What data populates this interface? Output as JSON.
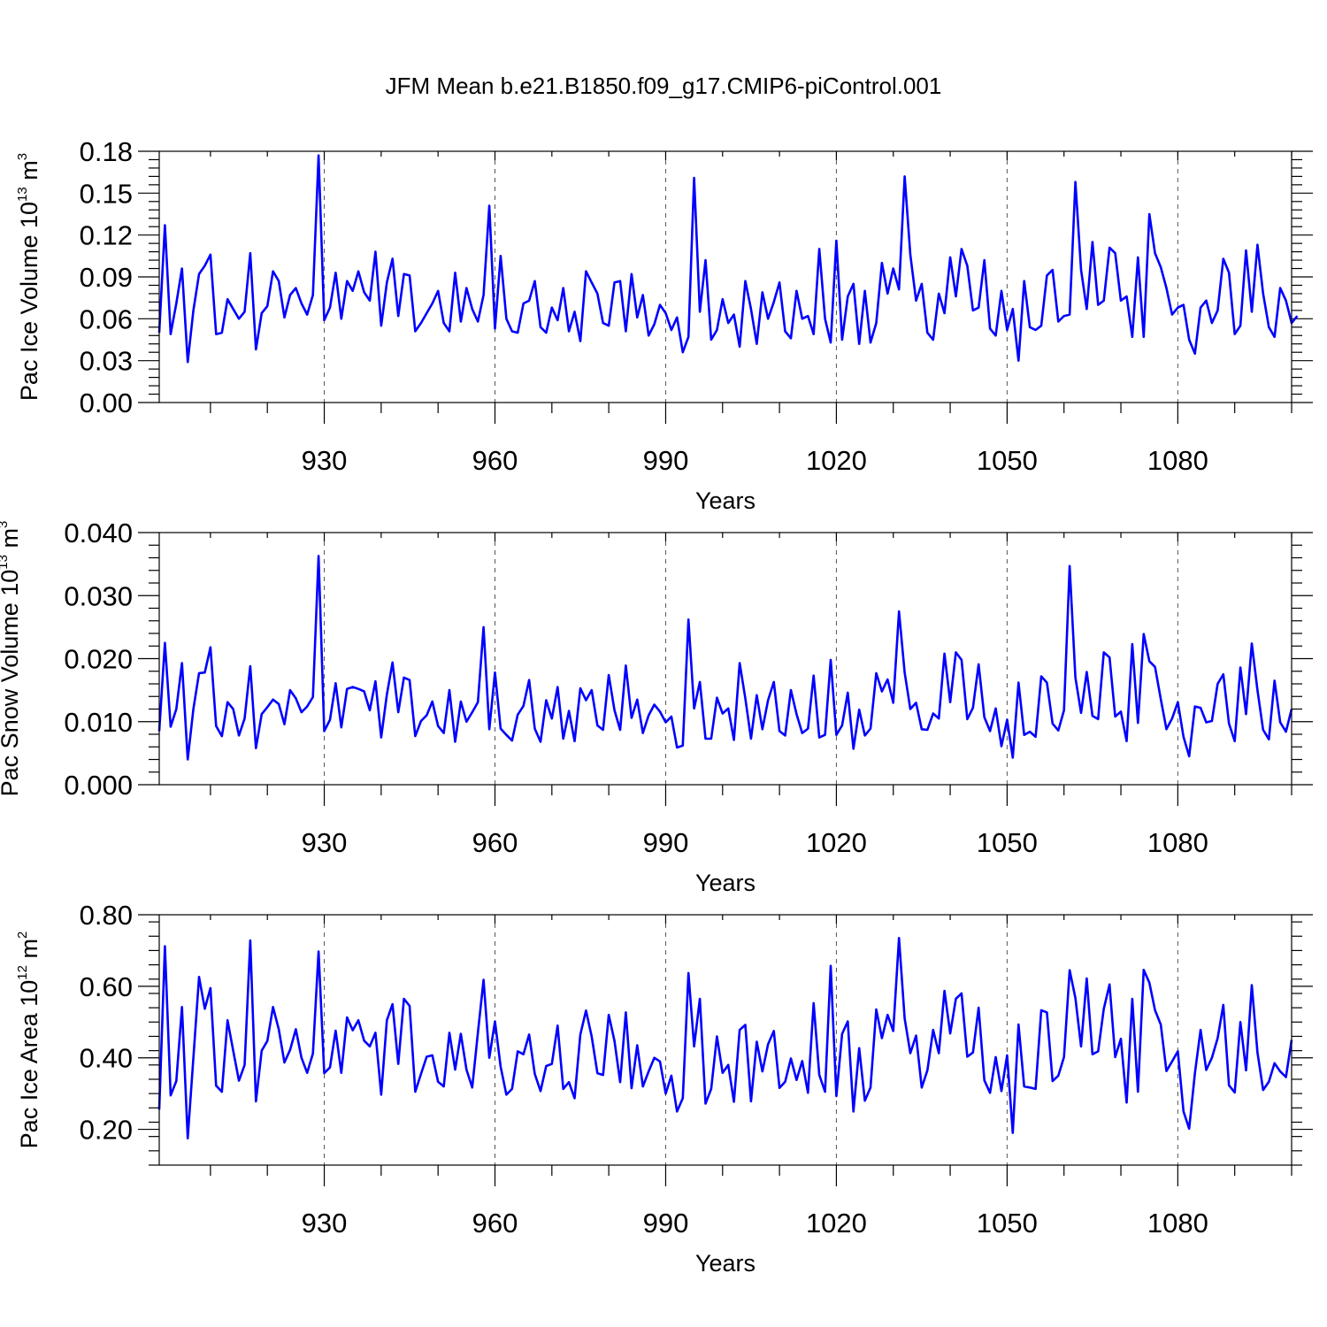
{
  "figure": {
    "title": "JFM Mean b.e21.B1850.f09_g17.CMIP6-piControl.001"
  },
  "chart_data": [
    {
      "type": "line",
      "ylabel": "Pac Ice Volume 10",
      "ylabel_exp": "13",
      "ylabel_unit": " m",
      "ylabel_unit_exp": "3",
      "xlabel": "Years",
      "xlim": [
        901,
        1100
      ],
      "ylim": [
        0,
        0.18
      ],
      "yticks": [
        "0.00",
        "0.03",
        "0.06",
        "0.09",
        "0.12",
        "0.15",
        "0.18"
      ],
      "ytick_values": [
        0,
        0.03,
        0.06,
        0.09,
        0.12,
        0.15,
        0.18
      ],
      "xticks": [
        "930",
        "960",
        "990",
        "1020",
        "1050",
        "1080"
      ],
      "xtick_values": [
        930,
        960,
        990,
        1020,
        1050,
        1080
      ],
      "series": [
        {
          "name": "Pac Ice Volume",
          "color": "#0000ff",
          "x_start": 901,
          "values": [
            0.05,
            0.127,
            0.049,
            0.071,
            0.096,
            0.029,
            0.066,
            0.092,
            0.098,
            0.106,
            0.049,
            0.05,
            0.074,
            0.067,
            0.06,
            0.065,
            0.107,
            0.038,
            0.064,
            0.069,
            0.094,
            0.087,
            0.061,
            0.077,
            0.082,
            0.071,
            0.063,
            0.077,
            0.177,
            0.059,
            0.068,
            0.093,
            0.06,
            0.087,
            0.08,
            0.094,
            0.079,
            0.073,
            0.108,
            0.055,
            0.086,
            0.103,
            0.062,
            0.092,
            0.091,
            0.051,
            0.057,
            0.064,
            0.071,
            0.08,
            0.057,
            0.051,
            0.093,
            0.058,
            0.082,
            0.067,
            0.058,
            0.077,
            0.141,
            0.053,
            0.105,
            0.06,
            0.051,
            0.05,
            0.071,
            0.073,
            0.087,
            0.054,
            0.05,
            0.068,
            0.059,
            0.082,
            0.051,
            0.065,
            0.044,
            0.094,
            0.086,
            0.078,
            0.057,
            0.055,
            0.086,
            0.087,
            0.051,
            0.092,
            0.061,
            0.077,
            0.048,
            0.056,
            0.07,
            0.064,
            0.052,
            0.061,
            0.036,
            0.047,
            0.161,
            0.065,
            0.102,
            0.045,
            0.052,
            0.074,
            0.057,
            0.063,
            0.04,
            0.087,
            0.067,
            0.042,
            0.079,
            0.06,
            0.072,
            0.086,
            0.051,
            0.046,
            0.08,
            0.06,
            0.062,
            0.049,
            0.11,
            0.06,
            0.043,
            0.116,
            0.045,
            0.076,
            0.085,
            0.042,
            0.08,
            0.043,
            0.057,
            0.1,
            0.078,
            0.096,
            0.081,
            0.162,
            0.106,
            0.073,
            0.085,
            0.05,
            0.045,
            0.078,
            0.064,
            0.104,
            0.076,
            0.11,
            0.098,
            0.066,
            0.068,
            0.102,
            0.053,
            0.048,
            0.08,
            0.052,
            0.067,
            0.03,
            0.087,
            0.054,
            0.052,
            0.055,
            0.091,
            0.095,
            0.058,
            0.062,
            0.063,
            0.158,
            0.095,
            0.067,
            0.115,
            0.07,
            0.073,
            0.111,
            0.107,
            0.073,
            0.076,
            0.047,
            0.104,
            0.047,
            0.135,
            0.107,
            0.097,
            0.082,
            0.063,
            0.068,
            0.07,
            0.045,
            0.035,
            0.068,
            0.073,
            0.057,
            0.066,
            0.103,
            0.093,
            0.049,
            0.055,
            0.109,
            0.065,
            0.113,
            0.078,
            0.054,
            0.047,
            0.082,
            0.073,
            0.057,
            0.062
          ]
        }
      ]
    },
    {
      "type": "line",
      "ylabel": "Pac Snow Volume 10",
      "ylabel_exp": "13",
      "ylabel_unit": " m",
      "ylabel_unit_exp": "3",
      "xlabel": "Years",
      "xlim": [
        901,
        1100
      ],
      "ylim": [
        0,
        0.04
      ],
      "yticks": [
        "0.000",
        "0.010",
        "0.020",
        "0.030",
        "0.040"
      ],
      "ytick_values": [
        0,
        0.01,
        0.02,
        0.03,
        0.04
      ],
      "xticks": [
        "930",
        "960",
        "990",
        "1020",
        "1050",
        "1080"
      ],
      "xtick_values": [
        930,
        960,
        990,
        1020,
        1050,
        1080
      ],
      "series": [
        {
          "name": "Pac Snow Volume",
          "color": "#0000ff",
          "x_start": 901,
          "values": [
            0.0085,
            0.0225,
            0.0092,
            0.012,
            0.0193,
            0.004,
            0.012,
            0.0177,
            0.0178,
            0.0218,
            0.0093,
            0.0077,
            0.0131,
            0.012,
            0.0078,
            0.0105,
            0.0188,
            0.0058,
            0.0112,
            0.0123,
            0.0135,
            0.0128,
            0.0096,
            0.015,
            0.0137,
            0.0115,
            0.0124,
            0.0139,
            0.0363,
            0.0085,
            0.0103,
            0.0161,
            0.0091,
            0.0152,
            0.0155,
            0.0152,
            0.0148,
            0.0118,
            0.0164,
            0.0075,
            0.0143,
            0.0194,
            0.0115,
            0.017,
            0.0166,
            0.0077,
            0.0101,
            0.011,
            0.0132,
            0.0093,
            0.0082,
            0.015,
            0.0068,
            0.0132,
            0.01,
            0.0115,
            0.0131,
            0.025,
            0.0088,
            0.0178,
            0.0089,
            0.0079,
            0.007,
            0.0111,
            0.0125,
            0.0166,
            0.0089,
            0.0068,
            0.0134,
            0.0105,
            0.0155,
            0.0073,
            0.0117,
            0.0069,
            0.0153,
            0.0134,
            0.015,
            0.0094,
            0.0087,
            0.0174,
            0.0118,
            0.0087,
            0.0189,
            0.0106,
            0.0135,
            0.0082,
            0.011,
            0.0127,
            0.0116,
            0.0099,
            0.0108,
            0.0059,
            0.0062,
            0.0262,
            0.0121,
            0.0163,
            0.0073,
            0.0073,
            0.0138,
            0.0113,
            0.0121,
            0.0071,
            0.0193,
            0.0137,
            0.0073,
            0.0142,
            0.0088,
            0.0134,
            0.0163,
            0.0085,
            0.0078,
            0.015,
            0.0112,
            0.0082,
            0.0089,
            0.0173,
            0.0075,
            0.0079,
            0.0198,
            0.0079,
            0.0094,
            0.0146,
            0.0057,
            0.0119,
            0.0078,
            0.0089,
            0.0177,
            0.0148,
            0.0167,
            0.013,
            0.0275,
            0.0178,
            0.012,
            0.013,
            0.0088,
            0.0087,
            0.0113,
            0.0105,
            0.0208,
            0.0131,
            0.021,
            0.0198,
            0.0104,
            0.0122,
            0.0191,
            0.0107,
            0.0085,
            0.0121,
            0.0061,
            0.0103,
            0.0043,
            0.0162,
            0.0079,
            0.0084,
            0.0076,
            0.0172,
            0.0162,
            0.0097,
            0.0086,
            0.0118,
            0.0347,
            0.017,
            0.0114,
            0.0179,
            0.0109,
            0.0104,
            0.021,
            0.0202,
            0.0108,
            0.0116,
            0.0069,
            0.0223,
            0.0098,
            0.0239,
            0.0196,
            0.0187,
            0.0136,
            0.0088,
            0.0105,
            0.0131,
            0.0076,
            0.0045,
            0.0124,
            0.0122,
            0.0099,
            0.0101,
            0.016,
            0.0175,
            0.0097,
            0.0069,
            0.0186,
            0.0112,
            0.0224,
            0.015,
            0.0087,
            0.0072,
            0.0165,
            0.0099,
            0.0084,
            0.012
          ]
        }
      ]
    },
    {
      "type": "line",
      "ylabel": "Pac Ice Area 10",
      "ylabel_exp": "12",
      "ylabel_unit": " m",
      "ylabel_unit_exp": "2",
      "xlabel": "Years",
      "xlim": [
        901,
        1100
      ],
      "ylim": [
        0.1,
        0.8
      ],
      "yticks": [
        "0.20",
        "0.40",
        "0.60",
        "0.80"
      ],
      "ytick_values": [
        0.2,
        0.4,
        0.6,
        0.8
      ],
      "xticks": [
        "930",
        "960",
        "990",
        "1020",
        "1050",
        "1080"
      ],
      "xtick_values": [
        930,
        960,
        990,
        1020,
        1050,
        1080
      ],
      "series": [
        {
          "name": "Pac Ice Area",
          "color": "#0000ff",
          "x_start": 901,
          "values": [
            0.255,
            0.712,
            0.295,
            0.335,
            0.542,
            0.175,
            0.4,
            0.626,
            0.537,
            0.595,
            0.322,
            0.305,
            0.505,
            0.42,
            0.336,
            0.38,
            0.728,
            0.278,
            0.42,
            0.447,
            0.542,
            0.48,
            0.387,
            0.422,
            0.48,
            0.4,
            0.358,
            0.412,
            0.697,
            0.357,
            0.373,
            0.476,
            0.358,
            0.513,
            0.477,
            0.505,
            0.448,
            0.432,
            0.47,
            0.297,
            0.505,
            0.55,
            0.383,
            0.565,
            0.545,
            0.305,
            0.355,
            0.403,
            0.407,
            0.333,
            0.32,
            0.47,
            0.367,
            0.467,
            0.367,
            0.317,
            0.47,
            0.618,
            0.4,
            0.502,
            0.375,
            0.297,
            0.313,
            0.418,
            0.41,
            0.465,
            0.355,
            0.307,
            0.377,
            0.383,
            0.49,
            0.313,
            0.332,
            0.287,
            0.465,
            0.532,
            0.46,
            0.357,
            0.352,
            0.52,
            0.447,
            0.332,
            0.527,
            0.315,
            0.435,
            0.32,
            0.362,
            0.4,
            0.39,
            0.3,
            0.35,
            0.25,
            0.287,
            0.637,
            0.432,
            0.565,
            0.272,
            0.313,
            0.46,
            0.358,
            0.38,
            0.277,
            0.478,
            0.492,
            0.278,
            0.445,
            0.362,
            0.438,
            0.475,
            0.316,
            0.333,
            0.398,
            0.338,
            0.391,
            0.302,
            0.553,
            0.352,
            0.305,
            0.657,
            0.293,
            0.467,
            0.502,
            0.25,
            0.427,
            0.28,
            0.317,
            0.535,
            0.455,
            0.52,
            0.475,
            0.735,
            0.51,
            0.413,
            0.462,
            0.317,
            0.365,
            0.478,
            0.413,
            0.587,
            0.468,
            0.565,
            0.58,
            0.403,
            0.415,
            0.54,
            0.337,
            0.302,
            0.402,
            0.307,
            0.407,
            0.19,
            0.493,
            0.32,
            0.317,
            0.313,
            0.533,
            0.527,
            0.335,
            0.35,
            0.402,
            0.645,
            0.567,
            0.432,
            0.622,
            0.41,
            0.418,
            0.537,
            0.605,
            0.402,
            0.453,
            0.275,
            0.565,
            0.305,
            0.646,
            0.61,
            0.533,
            0.493,
            0.363,
            0.39,
            0.418,
            0.25,
            0.202,
            0.357,
            0.478,
            0.366,
            0.4,
            0.455,
            0.548,
            0.323,
            0.303,
            0.5,
            0.365,
            0.603,
            0.415,
            0.31,
            0.333,
            0.385,
            0.362,
            0.346,
            0.45
          ]
        }
      ]
    }
  ]
}
